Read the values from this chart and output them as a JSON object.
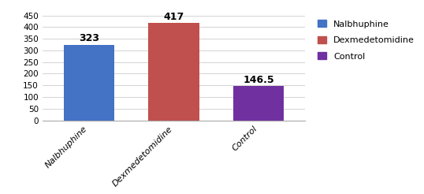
{
  "categories": [
    "Nalbhuphine",
    "Dexmedetomidine",
    "Control"
  ],
  "values": [
    323,
    417,
    146.5
  ],
  "bar_colors": [
    "#4472C4",
    "#C0504D",
    "#7030A0"
  ],
  "bar_labels": [
    "323",
    "417",
    "146.5"
  ],
  "legend_labels": [
    "Nalbhuphine",
    "Dexmedetomidine",
    "Control"
  ],
  "ylim": [
    0,
    450
  ],
  "yticks": [
    0,
    50,
    100,
    150,
    200,
    250,
    300,
    350,
    400,
    450
  ],
  "background_color": "#ffffff",
  "tick_fontsize": 7.5,
  "bar_label_fontsize": 9,
  "legend_fontsize": 8,
  "xlabel_fontsize": 8,
  "bar_width": 0.6
}
